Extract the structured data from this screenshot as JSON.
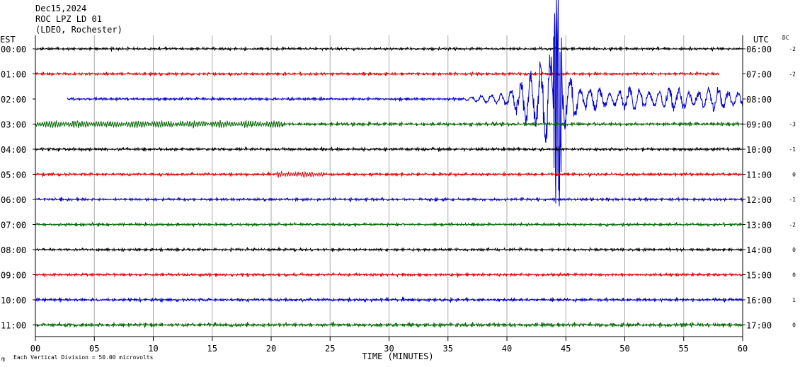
{
  "header": {
    "date": "Dec15,2024",
    "station": "ROC LPZ LD 01",
    "network": "(LDEO, Rochester)"
  },
  "left_axis_label": "EST",
  "right_axis_label": "UTC",
  "dc_label": "DC",
  "footer": {
    "mark": "ɱ",
    "scale_note": "Each Vertical Division =   50.00 microvolts"
  },
  "colors": {
    "cycle": [
      "#000000",
      "#dd0000",
      "#0000cc",
      "#006600"
    ],
    "grid": "#aaaaaa"
  },
  "chart_data": {
    "type": "line",
    "title": "Dec15,2024 ROC LPZ LD 01 (LDEO, Rochester)",
    "xlabel": "TIME (MINUTES)",
    "xlim": [
      0,
      60
    ],
    "x_ticks": [
      "00",
      "05",
      "10",
      "15",
      "20",
      "25",
      "30",
      "35",
      "40",
      "45",
      "50",
      "55",
      "60"
    ],
    "grid": true,
    "rows": [
      {
        "est": "00:00",
        "utc": "06:00",
        "dc": "-2",
        "start": 0,
        "end": 60,
        "amp": 0.8
      },
      {
        "est": "01:00",
        "utc": "07:00",
        "dc": "-2",
        "start": 0,
        "end": 58,
        "amp": 0.8
      },
      {
        "est": "02:00",
        "utc": "08:00",
        "dc": "",
        "start": 2.7,
        "end": 60,
        "amp": 0.8
      },
      {
        "est": "03:00",
        "utc": "09:00",
        "dc": "-3",
        "start": 0,
        "end": 60,
        "amp": 1.0
      },
      {
        "est": "04:00",
        "utc": "10:00",
        "dc": "-1",
        "start": 0,
        "end": 60,
        "amp": 0.9
      },
      {
        "est": "05:00",
        "utc": "11:00",
        "dc": "0",
        "start": 0,
        "end": 60,
        "amp": 0.8
      },
      {
        "est": "06:00",
        "utc": "12:00",
        "dc": "-1",
        "start": 0,
        "end": 60,
        "amp": 0.8
      },
      {
        "est": "07:00",
        "utc": "13:00",
        "dc": "-2",
        "start": 0,
        "end": 60,
        "amp": 0.8
      },
      {
        "est": "08:00",
        "utc": "14:00",
        "dc": "0",
        "start": 0,
        "end": 60,
        "amp": 0.8
      },
      {
        "est": "09:00",
        "utc": "15:00",
        "dc": "0",
        "start": 0,
        "end": 60,
        "amp": 0.8
      },
      {
        "est": "10:00",
        "utc": "16:00",
        "dc": "1",
        "start": 0,
        "end": 60,
        "amp": 0.9
      },
      {
        "est": "11:00",
        "utc": "17:00",
        "dc": "0",
        "start": 0,
        "end": 60,
        "amp": 1.1
      }
    ],
    "events": [
      {
        "row": 2,
        "start": 36.5,
        "end": 60,
        "peak_minute": 44.3,
        "description": "large earthquake arrival"
      },
      {
        "row": 3,
        "start": 0,
        "end": 21,
        "description": "elevated noise burst"
      },
      {
        "row": 5,
        "start": 20.5,
        "end": 24.5,
        "description": "small burst"
      }
    ]
  }
}
